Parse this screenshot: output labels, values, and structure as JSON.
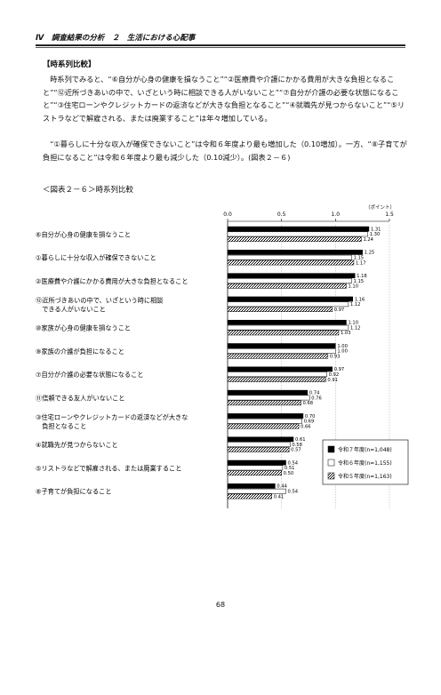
{
  "header": {
    "title": "Ⅳ　調査結果の分析　２　生活における心配事"
  },
  "section": {
    "title": "【時系列比較】"
  },
  "paragraphs": [
    "時系列でみると、“⑥自分が心身の健康を損なうこと”“②医療費や介護にかかる費用が大きな負担となること”“⑫近所づきあいの中で、いざという時に相談できる人がいないこと”“⑦自分が介護の必要な状態になること”“③住宅ローンやクレジットカードの返済などが大きな負担となること”“④就職先が見つからないこと”“⑤リストラなどで解雇される、または廃業すること”は年々増加している。",
    "“①暮らしに十分な収入が確保できないこと”は令和６年度より最も増加した（0.10増加）。一方、“⑧子育てが負担になること”は令和６年度より最も減少した（0.10減少）。(図表２－６)"
  ],
  "figure": {
    "title": "＜図表２－６＞時系列比較"
  },
  "chart_data": {
    "type": "bar",
    "orientation": "horizontal",
    "unit_label": "（ポイント）",
    "xlim": [
      0,
      1.5
    ],
    "ticks": [
      "0.0",
      "0.5",
      "1.0",
      "1.5"
    ],
    "grid": true,
    "legend_position": "bottom-right",
    "categories": [
      [
        "⑥自分が心身の健康を損なうこと"
      ],
      [
        "①暮らしに十分な収入が確保できないこと"
      ],
      [
        "②医療費や介護にかかる費用が大きな負担となること"
      ],
      [
        "⑫近所づきあいの中で、いざという時に相談",
        "　できる人がいないこと"
      ],
      [
        "⑩家族が心身の健康を損なうこと"
      ],
      [
        "⑨家族の介護が負担になること"
      ],
      [
        "⑦自分が介護の必要な状態になること"
      ],
      [
        "⑪信頼できる友人がいないこと"
      ],
      [
        "③住宅ローンやクレジットカードの返済などが大きな",
        "　負担となること"
      ],
      [
        "④就職先が見つからないこと"
      ],
      [
        "⑤リストラなどで解雇される、または廃業すること"
      ],
      [
        "⑧子育てが負担になること"
      ]
    ],
    "series": [
      {
        "name": "令和７年度(n=1,048)",
        "fill": "#000000",
        "values": [
          1.31,
          1.25,
          1.18,
          1.16,
          1.1,
          1.0,
          0.97,
          0.74,
          0.7,
          0.61,
          0.54,
          0.44
        ],
        "labels": [
          "1.31",
          "1.25",
          "1.18",
          "1.16",
          "1.10",
          "1.00",
          "0.97",
          "0.74",
          "0.70",
          "0.61",
          "0.54",
          "0.44"
        ]
      },
      {
        "name": "令和６年度(n=1,155)",
        "fill": "#ffffff",
        "values": [
          1.3,
          1.15,
          1.15,
          1.12,
          1.12,
          1.0,
          0.92,
          0.76,
          0.69,
          0.58,
          0.51,
          0.54
        ],
        "labels": [
          "1.30",
          "1.15",
          "1.15",
          "1.12",
          "1.12",
          "1.00",
          "0.92",
          "0.76",
          "0.69",
          "0.58",
          "0.51",
          "0.54"
        ]
      },
      {
        "name": "令和５年度(n=1,163)",
        "fill": "hatch",
        "values": [
          1.24,
          1.17,
          1.1,
          0.97,
          1.03,
          0.93,
          0.91,
          0.68,
          0.66,
          0.57,
          0.5,
          0.41
        ],
        "labels": [
          "1.24",
          "1.17",
          "1.10",
          "0.97",
          "1.03",
          "0.93",
          "0.91",
          "0.68",
          "0.66",
          "0.57",
          "0.50",
          "0.41"
        ]
      }
    ]
  },
  "page": {
    "number": "68"
  }
}
